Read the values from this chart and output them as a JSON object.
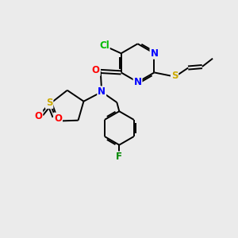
{
  "bg_color": "#ebebeb",
  "bond_color": "#000000",
  "atom_colors": {
    "N": "#0000ff",
    "O": "#ff0000",
    "S": "#ccaa00",
    "Cl": "#00bb00",
    "F": "#008800"
  },
  "font_size": 8.5,
  "line_width": 1.4
}
